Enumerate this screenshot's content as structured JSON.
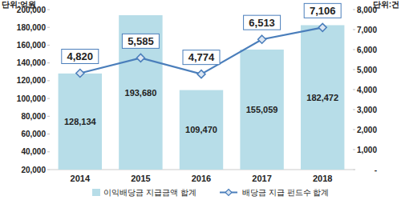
{
  "chart_data": {
    "type": "bar",
    "y_label": "단위:억원",
    "y2_label": "단위:건",
    "categories": [
      "2014",
      "2015",
      "2016",
      "2017",
      "2018"
    ],
    "series": [
      {
        "name": "이익배당금 지급금액 합계",
        "type": "bar",
        "color": "#b7dde8",
        "values": [
          128134,
          193680,
          109470,
          155059,
          182472
        ],
        "value_labels": [
          "128,134",
          "193,680",
          "109,470",
          "155,059",
          "182,472"
        ]
      },
      {
        "name": "배당금 지급 펀드수 합계",
        "type": "line",
        "axis": "y2",
        "color": "#4a7ebb",
        "marker": "diamond",
        "values": [
          4820,
          5585,
          4774,
          6513,
          7106
        ],
        "value_labels": [
          "4,820",
          "5,585",
          "4,774",
          "6,513",
          "7,106"
        ]
      }
    ],
    "ylim": [
      20000,
      200000
    ],
    "yticks": [
      {
        "value": 20000,
        "label": "20,000"
      },
      {
        "value": 40000,
        "label": "40,000"
      },
      {
        "value": 60000,
        "label": "60,000"
      },
      {
        "value": 80000,
        "label": "80,000"
      },
      {
        "value": 100000,
        "label": "100,000"
      },
      {
        "value": 120000,
        "label": "120,000"
      },
      {
        "value": 140000,
        "label": "140,000"
      },
      {
        "value": 160000,
        "label": "160,000"
      },
      {
        "value": 180000,
        "label": "180,000"
      },
      {
        "value": 200000,
        "label": "200,000"
      }
    ],
    "y2lim": [
      0,
      8000
    ],
    "y2ticks": [
      {
        "value": 0,
        "label": "-"
      },
      {
        "value": 1000,
        "label": "1,000"
      },
      {
        "value": 2000,
        "label": "2,000"
      },
      {
        "value": 3000,
        "label": "3,000"
      },
      {
        "value": 4000,
        "label": "4,000"
      },
      {
        "value": 5000,
        "label": "5,000"
      },
      {
        "value": 6000,
        "label": "6,000"
      },
      {
        "value": 7000,
        "label": "7,000"
      },
      {
        "value": 8000,
        "label": "8,000"
      }
    ],
    "grid": false,
    "data_labels": true,
    "legend": "bottom"
  }
}
